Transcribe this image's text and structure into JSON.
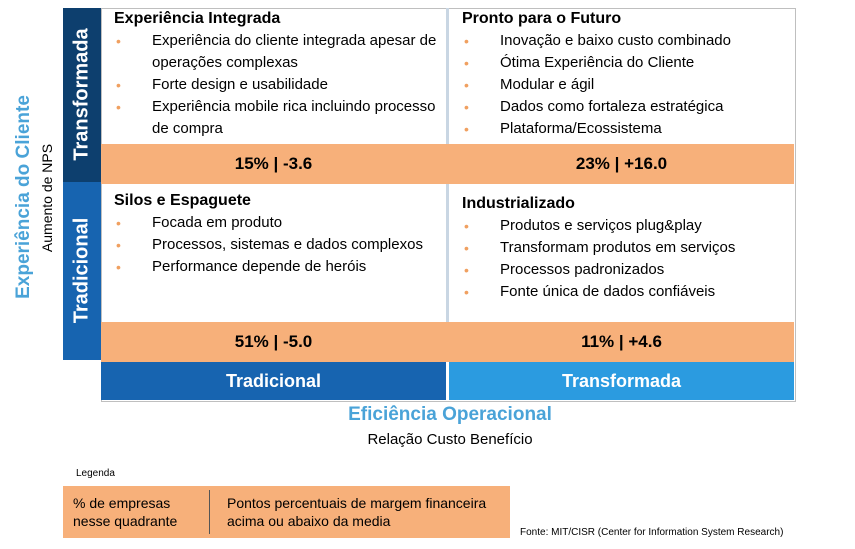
{
  "y_axis": {
    "title": "Experiência do Cliente",
    "subtitle": "Aumento de NPS"
  },
  "row_labels": {
    "top": "Transformada",
    "bottom": "Tradicional"
  },
  "quadrants": {
    "top_left": {
      "title": "Experiência Integrada",
      "items": [
        "Experiência do cliente integrada apesar de operações complexas",
        "Forte design e usabilidade",
        "Experiência mobile rica incluindo processo de compra"
      ],
      "stat": "15% | -3.6"
    },
    "top_right": {
      "title": "Pronto para o Futuro",
      "items": [
        "Inovação e baixo custo combinado",
        "Ótima Experiência do Cliente",
        "Modular e ágil",
        "Dados como fortaleza estratégica",
        "Plataforma/Ecossistema"
      ],
      "stat": "23% | +16.0"
    },
    "bottom_left": {
      "title": "Silos e Espaguete",
      "items": [
        "Focada em produto",
        "Processos, sistemas e dados complexos",
        "Performance depende de heróis"
      ],
      "stat": "51% | -5.0"
    },
    "bottom_right": {
      "title": "Industrializado",
      "items": [
        "Produtos e serviços plug&play",
        "Transformam produtos em serviços",
        "Processos padronizados",
        "Fonte única de dados confiáveis"
      ],
      "stat": "11% | +4.6"
    }
  },
  "x_columns": {
    "left": "Tradicional",
    "right": "Transformada"
  },
  "x_axis": {
    "title": "Eficiência Operacional",
    "subtitle": "Relação Custo Benefício"
  },
  "legend": {
    "label": "Legenda",
    "left": "% de empresas nesse quadrante",
    "right": "Pontos percentuais de margem financeira acima ou abaixo da media"
  },
  "source": "Fonte: MIT/CISR (Center for Information System Research)",
  "colors": {
    "dark_blue": "#0d3f6e",
    "mid_blue": "#1764b0",
    "light_blue": "#2b9be0",
    "orange": "#f7b07a",
    "axis_blue": "#4aa3d8"
  }
}
